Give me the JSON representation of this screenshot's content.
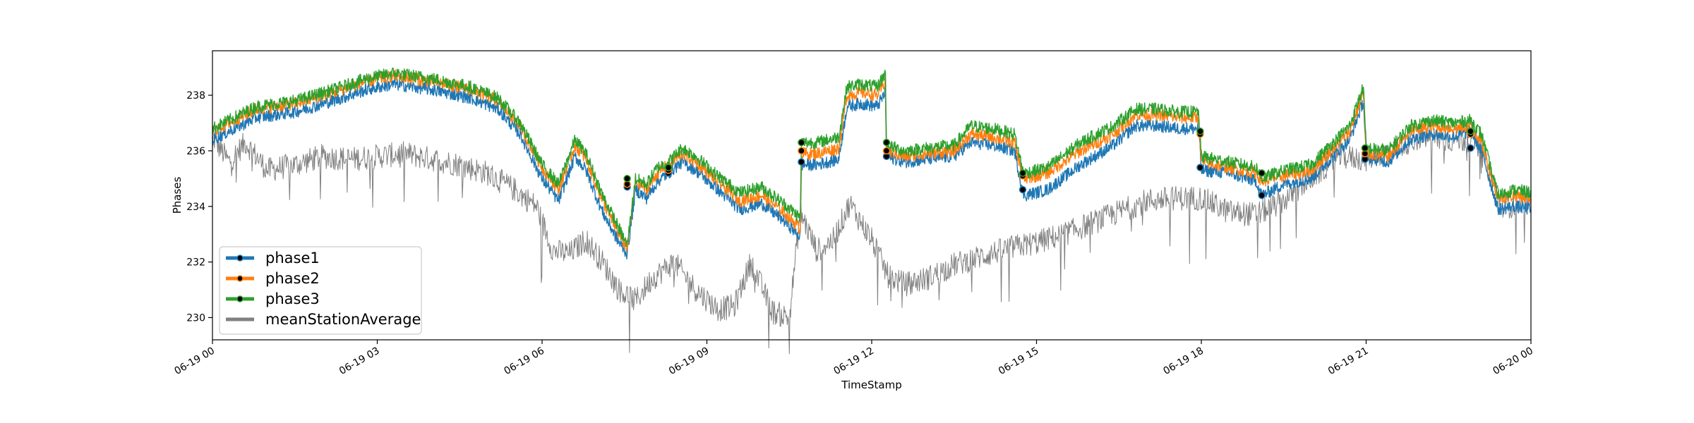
{
  "chart_data": {
    "type": "line",
    "title": "",
    "xlabel": "TimeStamp",
    "ylabel": "Phases",
    "xlim": [
      "2023-06-19T00:00",
      "2023-06-20T00:00"
    ],
    "ylim": [
      229.2,
      239.6
    ],
    "x_ticks": [
      "06-19 00",
      "06-19 03",
      "06-19 06",
      "06-19 09",
      "06-19 12",
      "06-19 15",
      "06-19 18",
      "06-19 21",
      "06-20 00"
    ],
    "y_ticks": [
      230,
      232,
      234,
      236,
      238
    ],
    "grid": false,
    "legend_position": "lower-left",
    "series": [
      {
        "name": "phase1",
        "color": "#1f77b4",
        "x_hours": [
          0,
          0.3,
          0.8,
          1.5,
          2.2,
          2.8,
          3.3,
          4.0,
          4.7,
          5.2,
          5.6,
          6.0,
          6.3,
          6.6,
          6.8,
          7.1,
          7.4,
          7.55,
          7.7,
          7.9,
          8.1,
          8.3,
          8.55,
          8.8,
          9.2,
          9.6,
          10.0,
          10.4,
          10.7,
          10.72,
          11.0,
          11.4,
          11.55,
          11.8,
          12.1,
          12.25,
          12.27,
          12.6,
          13.0,
          13.5,
          13.8,
          14.2,
          14.6,
          14.75,
          14.8,
          15.2,
          15.8,
          16.4,
          16.8,
          17.2,
          17.6,
          17.95,
          18.0,
          18.5,
          19.0,
          19.1,
          19.5,
          20.0,
          20.3,
          20.7,
          20.95,
          21.0,
          21.4,
          21.8,
          22.2,
          22.6,
          22.9,
          23.1,
          23.4,
          23.7,
          24.0
        ],
        "values": [
          236.4,
          236.7,
          237.2,
          237.4,
          237.8,
          238.2,
          238.4,
          238.2,
          237.9,
          237.5,
          236.6,
          235.0,
          234.2,
          235.8,
          235.3,
          233.8,
          232.7,
          232.3,
          234.6,
          234.3,
          234.9,
          235.2,
          235.6,
          235.3,
          234.6,
          233.9,
          234.1,
          233.5,
          232.9,
          235.5,
          235.5,
          235.7,
          237.6,
          237.7,
          237.6,
          238.1,
          235.8,
          235.6,
          235.7,
          235.8,
          236.3,
          236.2,
          236.0,
          234.5,
          234.4,
          234.6,
          235.5,
          236.2,
          236.9,
          236.9,
          236.8,
          236.8,
          235.3,
          235.2,
          234.9,
          234.4,
          234.8,
          235.0,
          235.6,
          236.4,
          237.8,
          235.8,
          235.6,
          236.4,
          236.6,
          236.5,
          236.7,
          236.0,
          233.9,
          234.0,
          233.9
        ]
      },
      {
        "name": "phase2",
        "color": "#ff7f0e",
        "x_hours": [
          0,
          0.3,
          0.8,
          1.5,
          2.2,
          2.8,
          3.3,
          4.0,
          4.7,
          5.2,
          5.6,
          6.0,
          6.3,
          6.6,
          6.8,
          7.1,
          7.4,
          7.55,
          7.7,
          7.9,
          8.1,
          8.3,
          8.55,
          8.8,
          9.2,
          9.6,
          10.0,
          10.4,
          10.7,
          10.72,
          11.0,
          11.4,
          11.55,
          11.8,
          12.1,
          12.25,
          12.27,
          12.6,
          13.0,
          13.5,
          13.8,
          14.2,
          14.6,
          14.75,
          14.8,
          15.2,
          15.8,
          16.4,
          16.8,
          17.2,
          17.6,
          17.95,
          18.0,
          18.5,
          19.0,
          19.1,
          19.5,
          20.0,
          20.3,
          20.7,
          20.95,
          21.0,
          21.4,
          21.8,
          22.2,
          22.6,
          22.9,
          23.1,
          23.4,
          23.7,
          24.0
        ],
        "values": [
          236.7,
          237.0,
          237.5,
          237.7,
          238.1,
          238.5,
          238.7,
          238.5,
          238.2,
          237.8,
          236.9,
          235.4,
          234.6,
          236.2,
          235.7,
          234.2,
          233.0,
          232.5,
          234.9,
          234.6,
          235.2,
          235.5,
          235.9,
          235.6,
          234.9,
          234.2,
          234.4,
          233.8,
          233.2,
          235.9,
          235.9,
          236.1,
          238.0,
          238.1,
          238.0,
          238.5,
          236.0,
          235.8,
          235.9,
          236.0,
          236.6,
          236.5,
          236.3,
          235.1,
          235.0,
          235.2,
          236.0,
          236.6,
          237.3,
          237.3,
          237.2,
          237.2,
          235.6,
          235.4,
          235.2,
          234.9,
          235.1,
          235.3,
          235.9,
          236.7,
          238.1,
          235.9,
          235.8,
          236.7,
          236.9,
          236.8,
          236.9,
          236.3,
          234.3,
          234.4,
          234.3
        ]
      },
      {
        "name": "phase3",
        "color": "#2ca02c",
        "x_hours": [
          0,
          0.3,
          0.8,
          1.5,
          2.2,
          2.8,
          3.3,
          4.0,
          4.7,
          5.2,
          5.6,
          6.0,
          6.3,
          6.6,
          6.8,
          7.1,
          7.4,
          7.55,
          7.7,
          7.9,
          8.1,
          8.3,
          8.55,
          8.8,
          9.2,
          9.6,
          10.0,
          10.4,
          10.7,
          10.72,
          11.0,
          11.4,
          11.55,
          11.8,
          12.1,
          12.25,
          12.27,
          12.6,
          13.0,
          13.5,
          13.8,
          14.2,
          14.6,
          14.75,
          14.8,
          15.2,
          15.8,
          16.4,
          16.8,
          17.2,
          17.6,
          17.95,
          18.0,
          18.5,
          19.0,
          19.1,
          19.5,
          20.0,
          20.3,
          20.7,
          20.95,
          21.0,
          21.4,
          21.8,
          22.2,
          22.6,
          22.9,
          23.1,
          23.4,
          23.7,
          24.0
        ],
        "values": [
          236.8,
          237.1,
          237.6,
          237.8,
          238.2,
          238.6,
          238.8,
          238.6,
          238.3,
          237.9,
          237.0,
          235.5,
          234.8,
          236.4,
          235.9,
          234.4,
          233.2,
          232.6,
          235.0,
          234.8,
          235.4,
          235.6,
          236.1,
          235.8,
          235.1,
          234.5,
          234.7,
          234.1,
          233.6,
          236.3,
          236.3,
          236.5,
          238.3,
          238.4,
          238.3,
          238.8,
          236.2,
          236.0,
          236.1,
          236.2,
          236.9,
          236.8,
          236.6,
          235.3,
          235.2,
          235.4,
          236.3,
          236.9,
          237.5,
          237.5,
          237.4,
          237.4,
          235.8,
          235.6,
          235.4,
          235.0,
          235.3,
          235.5,
          236.1,
          236.9,
          238.3,
          236.1,
          236.0,
          236.9,
          237.1,
          237.0,
          237.1,
          236.6,
          234.4,
          234.6,
          234.5
        ]
      },
      {
        "name": "meanStationAverage",
        "color": "#808080",
        "x_hours": [
          0,
          0.3,
          0.6,
          1.0,
          1.5,
          2.0,
          2.5,
          3.0,
          3.5,
          4.0,
          4.5,
          5.0,
          5.5,
          5.9,
          6.2,
          6.5,
          6.8,
          7.1,
          7.4,
          7.7,
          8.0,
          8.4,
          8.8,
          9.2,
          9.5,
          9.8,
          10.2,
          10.5,
          10.7,
          11.0,
          11.3,
          11.6,
          12.0,
          12.3,
          12.6,
          13.0,
          13.5,
          14.0,
          14.5,
          15.0,
          15.5,
          16.0,
          16.5,
          17.0,
          17.5,
          18.0,
          18.5,
          19.0,
          19.5,
          20.0,
          20.5,
          21.0,
          21.5,
          22.0,
          22.5,
          23.0,
          23.5,
          24.0
        ],
        "values": [
          236.5,
          235.6,
          236.3,
          235.3,
          235.5,
          235.8,
          235.7,
          235.8,
          235.9,
          235.7,
          235.5,
          235.2,
          234.6,
          234.0,
          232.4,
          232.3,
          232.8,
          232.0,
          231.0,
          230.6,
          231.4,
          232.0,
          231.0,
          230.3,
          230.4,
          232.0,
          230.2,
          230.0,
          233.8,
          232.4,
          232.8,
          234.1,
          232.8,
          231.5,
          231.2,
          231.4,
          231.9,
          232.2,
          232.5,
          232.7,
          233.0,
          233.4,
          233.8,
          234.2,
          234.3,
          234.3,
          233.8,
          233.7,
          234.2,
          235.0,
          235.8,
          235.7,
          236.1,
          236.5,
          236.4,
          236.4,
          234.0,
          234.1
        ]
      }
    ],
    "markers": [
      {
        "series": "phase1",
        "x_hours": [
          7.55,
          8.3,
          10.72,
          12.27,
          14.75,
          17.98,
          19.1,
          20.98,
          22.9
        ],
        "values": [
          234.7,
          235.2,
          235.6,
          235.8,
          234.6,
          235.4,
          234.4,
          235.7,
          236.1
        ]
      },
      {
        "series": "phase2",
        "x_hours": [
          7.55,
          8.3,
          10.72,
          12.27,
          14.75,
          17.98,
          19.1,
          20.98,
          22.9
        ],
        "values": [
          234.8,
          235.3,
          236.0,
          236.0,
          235.1,
          236.6,
          235.2,
          235.9,
          236.6
        ]
      },
      {
        "series": "phase3",
        "x_hours": [
          7.55,
          8.3,
          10.72,
          12.27,
          14.75,
          17.98,
          19.1,
          20.98,
          22.9
        ],
        "values": [
          235.0,
          235.4,
          236.3,
          236.3,
          235.2,
          236.7,
          235.2,
          236.1,
          236.7
        ]
      }
    ]
  }
}
